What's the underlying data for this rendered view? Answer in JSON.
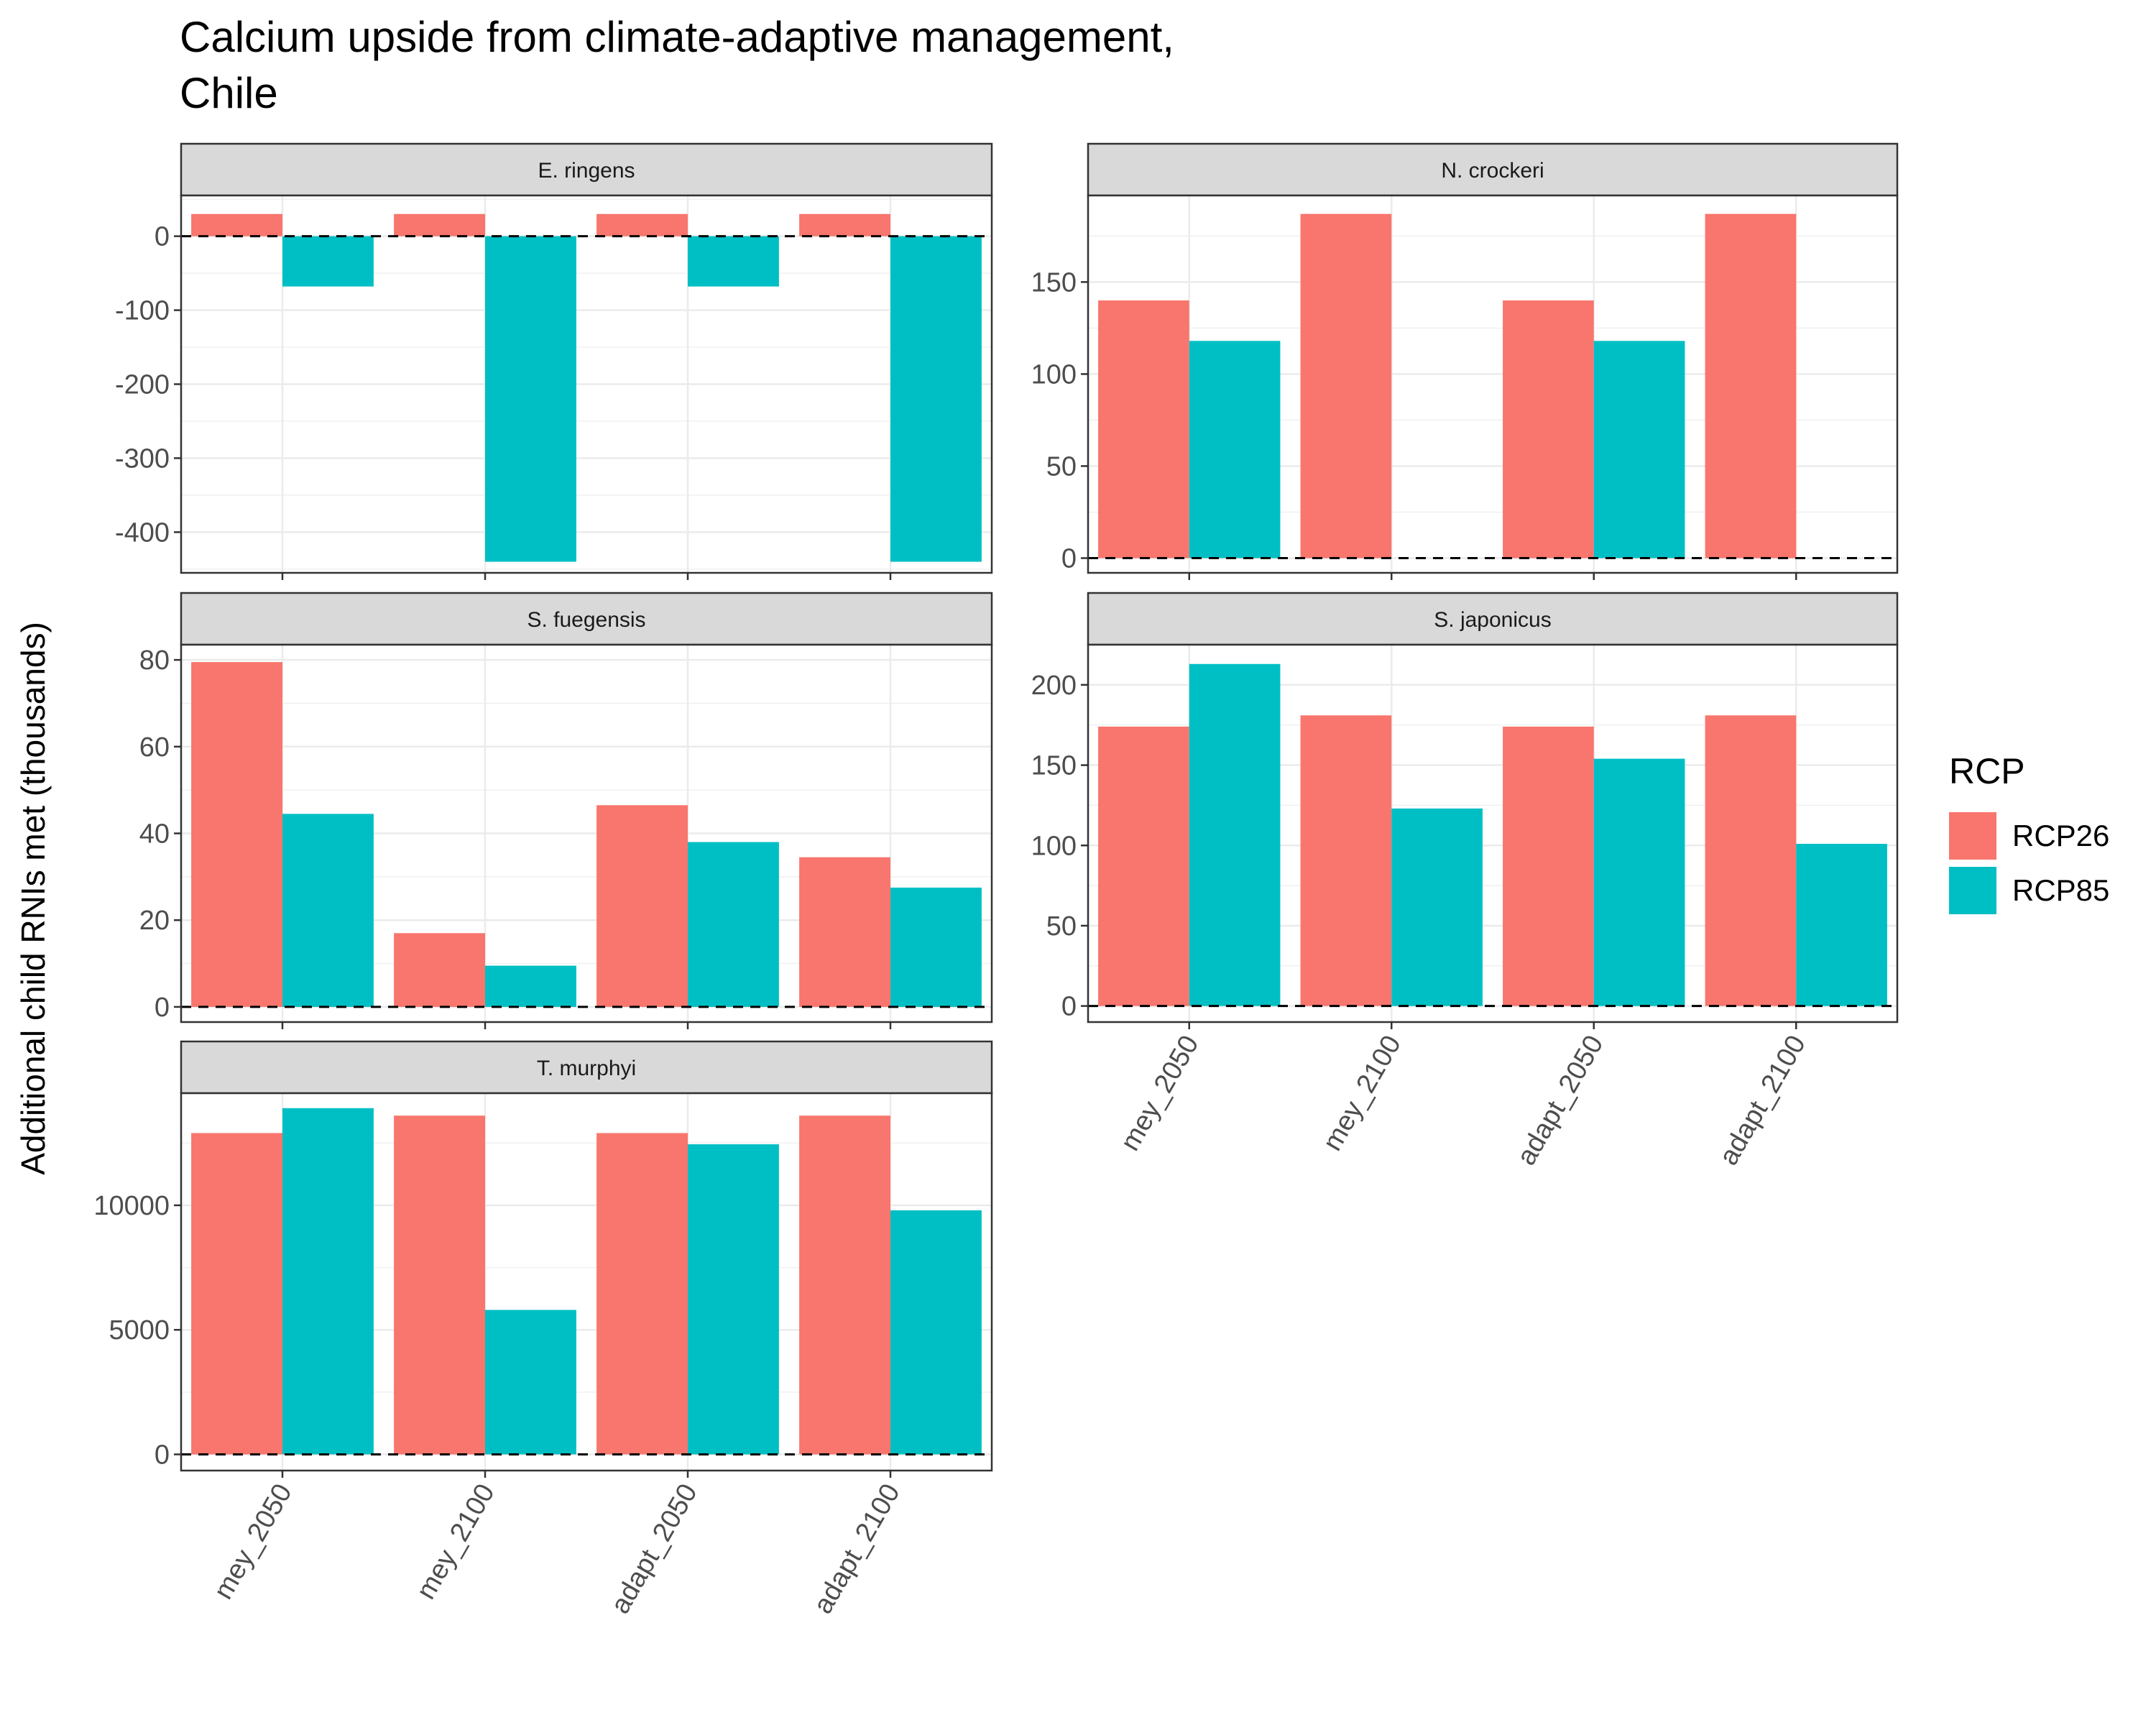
{
  "chart_data": {
    "type": "bar",
    "title": "Calcium upside from climate-adaptive management, Chile",
    "title_lines": [
      "Calcium upside from climate-adaptive management,",
      "Chile"
    ],
    "ylabel": "Additional child RNIs met (thousands)",
    "xlabel": "",
    "categories": [
      "mey_2050",
      "mey_2100",
      "adapt_2050",
      "adapt_2100"
    ],
    "legend": {
      "title": "RCP",
      "placement": "right"
    },
    "colors": {
      "RCP26": "#F8766D",
      "RCP85": "#00BFC4"
    },
    "grid": true,
    "reference_line": 0,
    "panels": [
      {
        "name": "E. ringens",
        "ylim": [
          -455,
          55
        ],
        "yticks": [
          0,
          -100,
          -200,
          -300,
          -400
        ],
        "ytick_labels": [
          "0",
          "-100",
          "-200",
          "-300",
          "-400"
        ],
        "series": [
          {
            "name": "RCP26",
            "values": [
              30,
              30,
              30,
              30
            ]
          },
          {
            "name": "RCP85",
            "values": [
              -68,
              -440,
              -68,
              -440
            ]
          }
        ]
      },
      {
        "name": "N. crockeri",
        "ylim": [
          -8,
          197
        ],
        "yticks": [
          0,
          50,
          100,
          150
        ],
        "ytick_labels": [
          "0",
          "50",
          "100",
          "150"
        ],
        "series": [
          {
            "name": "RCP26",
            "values": [
              140,
              187,
              140,
              187
            ]
          },
          {
            "name": "RCP85",
            "values": [
              118,
              0,
              118,
              0
            ]
          }
        ]
      },
      {
        "name": "S. fuegensis",
        "ylim": [
          -3.5,
          83.5
        ],
        "yticks": [
          0,
          20,
          40,
          60,
          80
        ],
        "ytick_labels": [
          "0",
          "20",
          "40",
          "60",
          "80"
        ],
        "series": [
          {
            "name": "RCP26",
            "values": [
              79.5,
              17,
              46.5,
              34.5
            ]
          },
          {
            "name": "RCP85",
            "values": [
              44.5,
              9.5,
              38,
              27.5
            ]
          }
        ]
      },
      {
        "name": "S. japonicus",
        "ylim": [
          -10,
          225
        ],
        "yticks": [
          0,
          50,
          100,
          150,
          200
        ],
        "ytick_labels": [
          "0",
          "50",
          "100",
          "150",
          "200"
        ],
        "series": [
          {
            "name": "RCP26",
            "values": [
              174,
              181,
              174,
              181
            ]
          },
          {
            "name": "RCP85",
            "values": [
              213,
              123,
              154,
              101
            ]
          }
        ]
      },
      {
        "name": "T. murphyi",
        "ylim": [
          -650,
          14500
        ],
        "yticks": [
          0,
          5000,
          10000
        ],
        "ytick_labels": [
          "0",
          "5000",
          "10000"
        ],
        "series": [
          {
            "name": "RCP26",
            "values": [
              12900,
              13600,
              12900,
              13600
            ]
          },
          {
            "name": "RCP85",
            "values": [
              13900,
              5800,
              12450,
              9800
            ]
          }
        ]
      }
    ]
  }
}
